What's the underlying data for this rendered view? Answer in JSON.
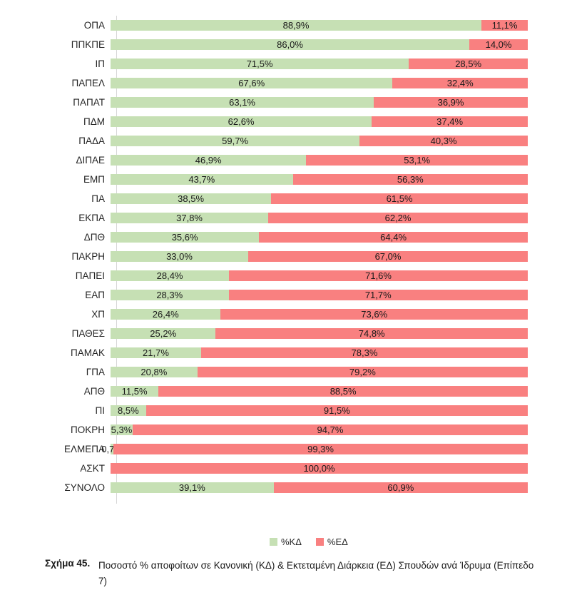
{
  "chart_data": {
    "type": "bar",
    "orientation": "horizontal",
    "stacked": true,
    "xlim": [
      0,
      100
    ],
    "grid": false,
    "legend_position": "bottom",
    "series_names": [
      "%ΚΔ",
      "%ΕΔ"
    ],
    "rows": [
      {
        "label": "ΟΠΑ",
        "kd": 88.9,
        "ed": 11.1,
        "kd_label": "88,9%",
        "ed_label": "11,1%"
      },
      {
        "label": "ΠΠΚΠΕ",
        "kd": 86.0,
        "ed": 14.0,
        "kd_label": "86,0%",
        "ed_label": "14,0%"
      },
      {
        "label": "ΙΠ",
        "kd": 71.5,
        "ed": 28.5,
        "kd_label": "71,5%",
        "ed_label": "28,5%"
      },
      {
        "label": "ΠΑΠΕΛ",
        "kd": 67.6,
        "ed": 32.4,
        "kd_label": "67,6%",
        "ed_label": "32,4%"
      },
      {
        "label": "ΠΑΠΑΤ",
        "kd": 63.1,
        "ed": 36.9,
        "kd_label": "63,1%",
        "ed_label": "36,9%"
      },
      {
        "label": "ΠΔΜ",
        "kd": 62.6,
        "ed": 37.4,
        "kd_label": "62,6%",
        "ed_label": "37,4%"
      },
      {
        "label": "ΠΑΔΑ",
        "kd": 59.7,
        "ed": 40.3,
        "kd_label": "59,7%",
        "ed_label": "40,3%"
      },
      {
        "label": "ΔΙΠΑΕ",
        "kd": 46.9,
        "ed": 53.1,
        "kd_label": "46,9%",
        "ed_label": "53,1%"
      },
      {
        "label": "ΕΜΠ",
        "kd": 43.7,
        "ed": 56.3,
        "kd_label": "43,7%",
        "ed_label": "56,3%"
      },
      {
        "label": "ΠΑ",
        "kd": 38.5,
        "ed": 61.5,
        "kd_label": "38,5%",
        "ed_label": "61,5%"
      },
      {
        "label": "ΕΚΠΑ",
        "kd": 37.8,
        "ed": 62.2,
        "kd_label": "37,8%",
        "ed_label": "62,2%"
      },
      {
        "label": "ΔΠΘ",
        "kd": 35.6,
        "ed": 64.4,
        "kd_label": "35,6%",
        "ed_label": "64,4%"
      },
      {
        "label": "ΠΑΚΡΗ",
        "kd": 33.0,
        "ed": 67.0,
        "kd_label": "33,0%",
        "ed_label": "67,0%"
      },
      {
        "label": "ΠΑΠΕΙ",
        "kd": 28.4,
        "ed": 71.6,
        "kd_label": "28,4%",
        "ed_label": "71,6%"
      },
      {
        "label": "ΕΑΠ",
        "kd": 28.3,
        "ed": 71.7,
        "kd_label": "28,3%",
        "ed_label": "71,7%"
      },
      {
        "label": "ΧΠ",
        "kd": 26.4,
        "ed": 73.6,
        "kd_label": "26,4%",
        "ed_label": "73,6%"
      },
      {
        "label": "ΠΑΘΕΣ",
        "kd": 25.2,
        "ed": 74.8,
        "kd_label": "25,2%",
        "ed_label": "74,8%"
      },
      {
        "label": "ΠΑΜΑΚ",
        "kd": 21.7,
        "ed": 78.3,
        "kd_label": "21,7%",
        "ed_label": "78,3%"
      },
      {
        "label": "ΓΠΑ",
        "kd": 20.8,
        "ed": 79.2,
        "kd_label": "20,8%",
        "ed_label": "79,2%"
      },
      {
        "label": "ΑΠΘ",
        "kd": 11.5,
        "ed": 88.5,
        "kd_label": "11,5%",
        "ed_label": "88,5%"
      },
      {
        "label": "ΠΙ",
        "kd": 8.5,
        "ed": 91.5,
        "kd_label": "8,5%",
        "ed_label": "91,5%"
      },
      {
        "label": "ΠΟΚΡΗ",
        "kd": 5.3,
        "ed": 94.7,
        "kd_label": "5,3%",
        "ed_label": "94,7%"
      },
      {
        "label": "ΕΛΜΕΠΑ",
        "kd": 0.7,
        "ed": 99.3,
        "kd_label": "0,7%",
        "ed_label": "99,3%"
      },
      {
        "label": "ΑΣΚΤ",
        "kd": null,
        "ed": 100.0,
        "kd_label": null,
        "ed_label": "100,0%"
      },
      {
        "label": "ΣΥΝΟΛΟ",
        "kd": 39.1,
        "ed": 60.9,
        "kd_label": "39,1%",
        "ed_label": "60,9%"
      }
    ]
  },
  "legend": {
    "kd_label": "%ΚΔ",
    "ed_label": "%ΕΔ"
  },
  "caption": {
    "figure_label": "Σχήμα 45.",
    "text": "Ποσοστό % αποφοίτων σε Κανονική (ΚΔ) & Εκτεταμένη Διάρκεια (ΕΔ) Σπουδών ανά Ίδρυμα (Επίπεδο 7)"
  },
  "colors": {
    "kd": "#c6e0b4",
    "ed": "#f98080",
    "axis_line": "#d6d6d6",
    "label_text": "#1a1a1a"
  }
}
